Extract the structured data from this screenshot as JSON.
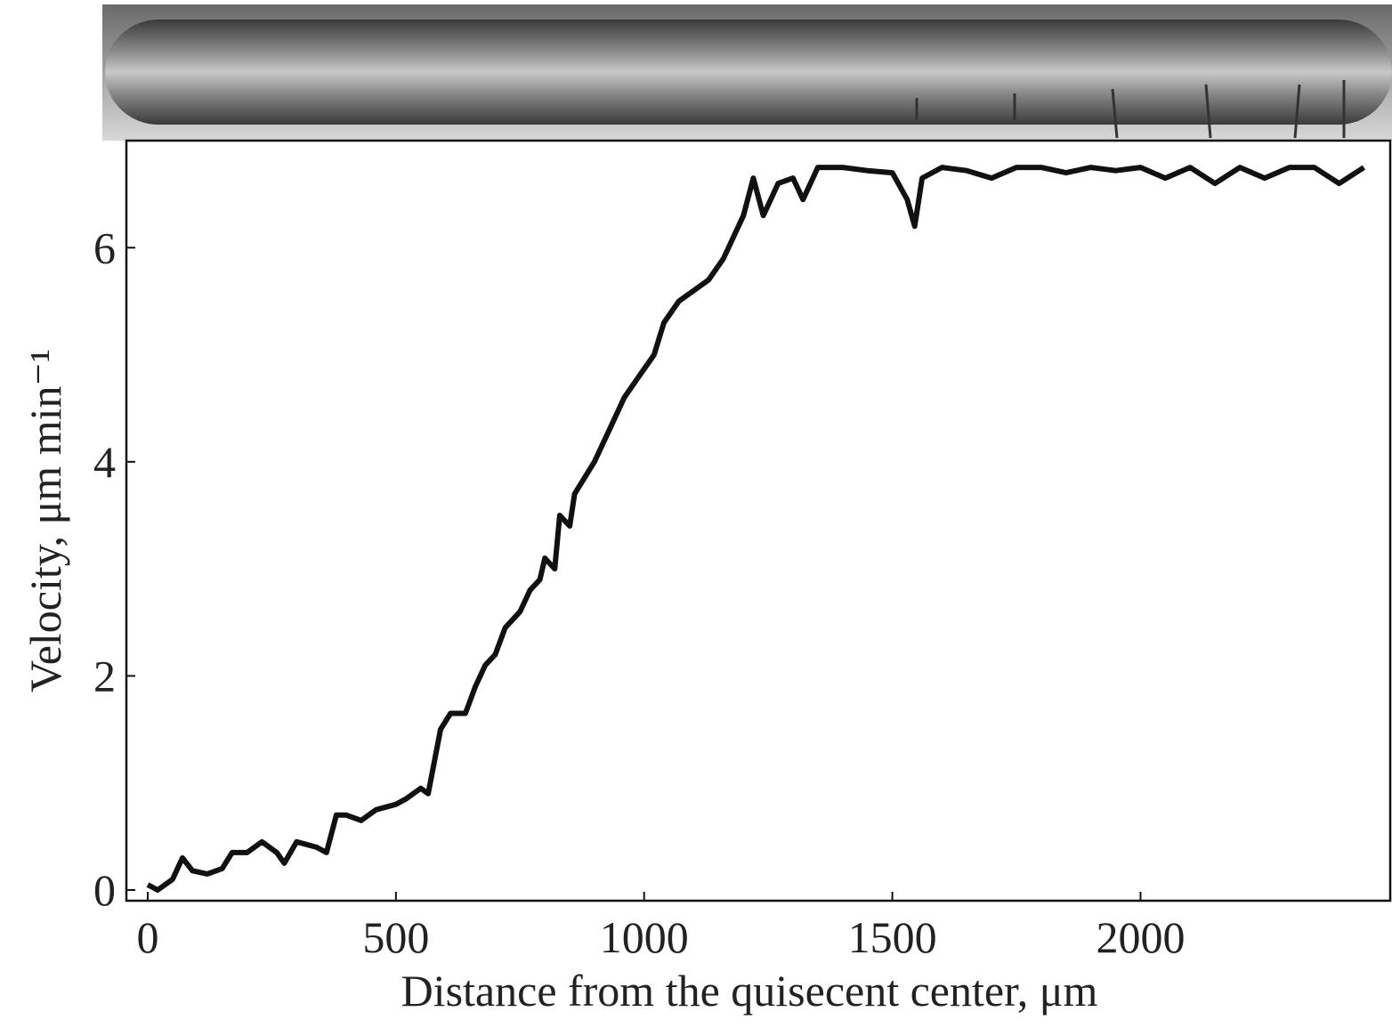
{
  "chart_data": {
    "type": "line",
    "x_label": "Distance from the quisecent center, μm",
    "y_label": "Velocity, μm min⁻¹",
    "xlim": [
      -43,
      2503
    ],
    "ylim": [
      -0.1,
      7.0
    ],
    "xticks": [
      0,
      500,
      1000,
      1500,
      2000
    ],
    "yticks": [
      0,
      2,
      4,
      6
    ],
    "series": [
      {
        "color": "#111111",
        "x": [
          0,
          20,
          50,
          70,
          90,
          120,
          150,
          170,
          200,
          230,
          260,
          275,
          300,
          340,
          360,
          380,
          400,
          430,
          460,
          500,
          520,
          550,
          565,
          590,
          610,
          640,
          660,
          680,
          700,
          720,
          750,
          770,
          790,
          800,
          820,
          830,
          850,
          860,
          900,
          930,
          960,
          990,
          1020,
          1040,
          1070,
          1100,
          1130,
          1160,
          1180,
          1200,
          1220,
          1240,
          1270,
          1300,
          1320,
          1350,
          1400,
          1450,
          1500,
          1530,
          1545,
          1560,
          1600,
          1650,
          1700,
          1750,
          1800,
          1850,
          1900,
          1950,
          2000,
          2050,
          2100,
          2150,
          2200,
          2250,
          2300,
          2350,
          2400,
          2450
        ],
        "values": [
          0.05,
          0.0,
          0.1,
          0.3,
          0.18,
          0.15,
          0.2,
          0.35,
          0.35,
          0.45,
          0.35,
          0.25,
          0.45,
          0.4,
          0.35,
          0.7,
          0.7,
          0.65,
          0.75,
          0.8,
          0.85,
          0.95,
          0.9,
          1.5,
          1.65,
          1.65,
          1.9,
          2.1,
          2.2,
          2.45,
          2.6,
          2.8,
          2.9,
          3.1,
          3.0,
          3.5,
          3.4,
          3.7,
          4.0,
          4.3,
          4.6,
          4.8,
          5.0,
          5.3,
          5.5,
          5.6,
          5.7,
          5.9,
          6.1,
          6.3,
          6.65,
          6.3,
          6.6,
          6.65,
          6.45,
          6.75,
          6.75,
          6.72,
          6.7,
          6.45,
          6.2,
          6.65,
          6.75,
          6.72,
          6.65,
          6.75,
          6.75,
          6.7,
          6.75,
          6.72,
          6.75,
          6.65,
          6.75,
          6.6,
          6.75,
          6.65,
          6.75,
          6.75,
          6.6,
          6.75
        ]
      }
    ]
  }
}
